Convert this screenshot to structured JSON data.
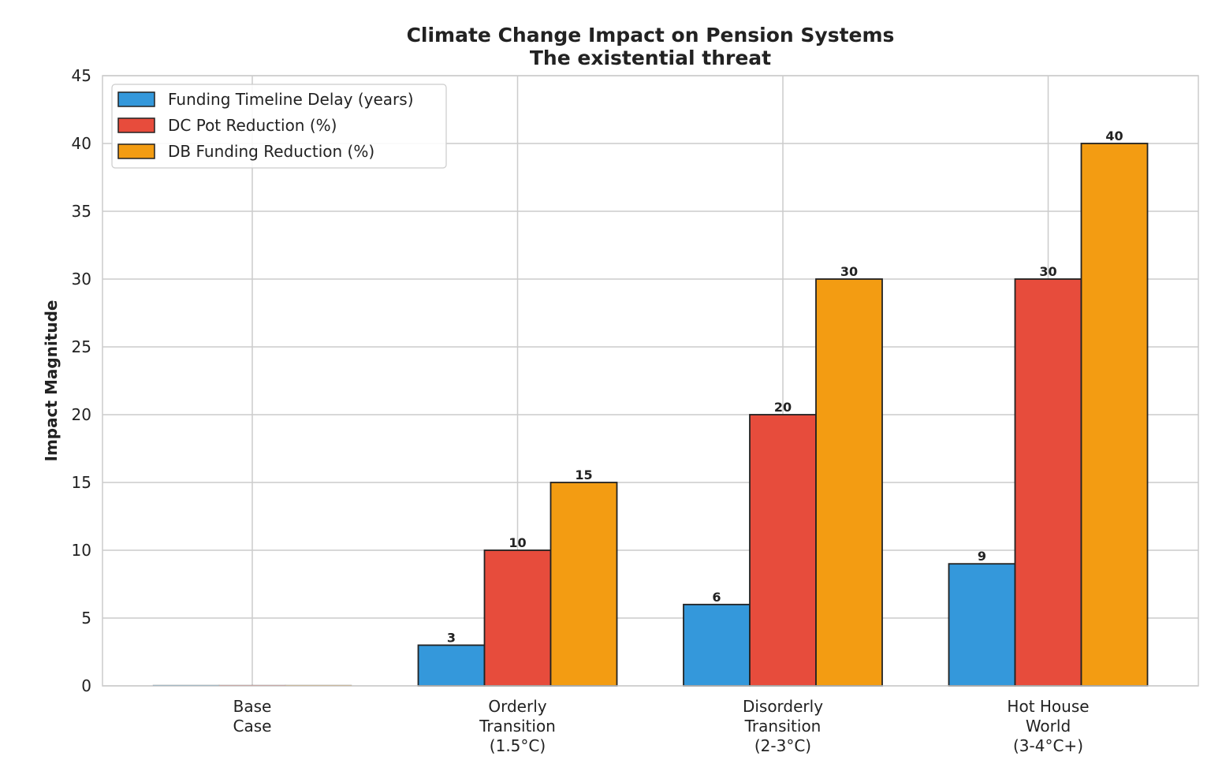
{
  "chart_data": {
    "type": "bar",
    "title": "Climate Change Impact on Pension Systems",
    "subtitle": "The existential threat",
    "xlabel": "",
    "ylabel": "Impact Magnitude",
    "ylim": [
      0,
      45
    ],
    "yticks": [
      0,
      5,
      10,
      15,
      20,
      25,
      30,
      35,
      40,
      45
    ],
    "grid": true,
    "legend_position": "top-left",
    "categories": [
      [
        "Base",
        "Case"
      ],
      [
        "Orderly",
        "Transition",
        "(1.5°C)"
      ],
      [
        "Disorderly",
        "Transition",
        "(2-3°C)"
      ],
      [
        "Hot House",
        "World",
        "(3-4°C+)"
      ]
    ],
    "series": [
      {
        "name": "Funding Timeline Delay (years)",
        "color": "#3498db",
        "values": [
          0,
          3,
          6,
          9
        ]
      },
      {
        "name": "DC Pot Reduction (%)",
        "color": "#e74c3c",
        "values": [
          0,
          10,
          20,
          30
        ]
      },
      {
        "name": "DB Funding Reduction (%)",
        "color": "#f39c12",
        "values": [
          0,
          15,
          30,
          40
        ]
      }
    ]
  }
}
